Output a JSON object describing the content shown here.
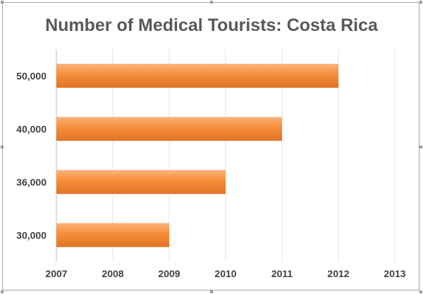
{
  "chart_data": {
    "type": "bar",
    "orientation": "horizontal",
    "title": "Number of Medical Tourists: Costa Rica",
    "categories": [
      "50,000",
      "40,000",
      "36,000",
      "30,000"
    ],
    "values": [
      2012,
      2011,
      2010,
      2009
    ],
    "x_ticks": [
      "2007",
      "2008",
      "2009",
      "2010",
      "2011",
      "2012",
      "2013"
    ],
    "xlim": [
      2007,
      2013
    ],
    "xlabel": "",
    "ylabel": "",
    "grid": "vertical",
    "legend": "none",
    "bar_color": "#f68d3a",
    "bar_color_light": "#fbb27a",
    "bar_color_dark": "#e07324"
  }
}
